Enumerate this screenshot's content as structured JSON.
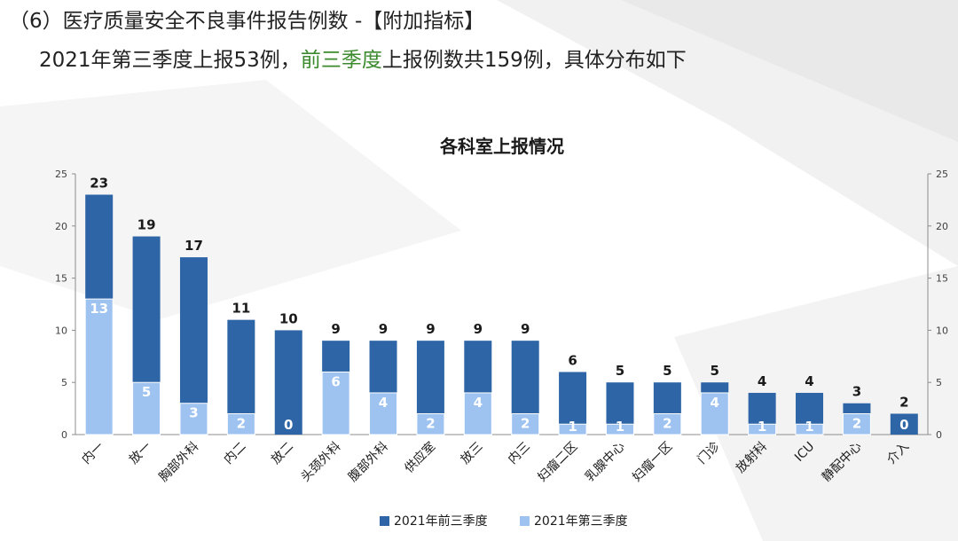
{
  "heading": "（6）医疗质量安全不良事件报告例数 -【附加指标】",
  "subheading": {
    "part1": "2021年第三季度上报53例，",
    "highlight": "前三季度",
    "part2": "上报例数共159例，具体分布如下"
  },
  "colors": {
    "highlight_text": "#3c8a2e",
    "series_dark": "#2e65a6",
    "series_light": "#9ec3f0"
  },
  "chart_data": {
    "type": "bar",
    "title": "各科室上报情况",
    "categories": [
      "内一",
      "放一",
      "胸部外科",
      "内二",
      "放二",
      "头颈外科",
      "腹部外科",
      "供应室",
      "放三",
      "内三",
      "妇瘤二区",
      "乳腺中心",
      "妇瘤一区",
      "门诊",
      "放射科",
      "ICU",
      "静配中心",
      "介入"
    ],
    "series": [
      {
        "name": "2021年前三季度",
        "values": [
          23,
          19,
          17,
          11,
          10,
          9,
          9,
          9,
          9,
          9,
          6,
          5,
          5,
          5,
          4,
          4,
          3,
          2
        ]
      },
      {
        "name": "2021年第三季度",
        "values": [
          13,
          5,
          3,
          2,
          0,
          6,
          4,
          2,
          4,
          2,
          1,
          1,
          2,
          4,
          1,
          1,
          2,
          0
        ]
      }
    ],
    "ylim": [
      0,
      25
    ],
    "yticks": [
      0,
      5,
      10,
      15,
      20,
      25
    ],
    "secondary_axis": true,
    "grid": false,
    "legend": "bottom",
    "xlabel": "",
    "ylabel": ""
  }
}
